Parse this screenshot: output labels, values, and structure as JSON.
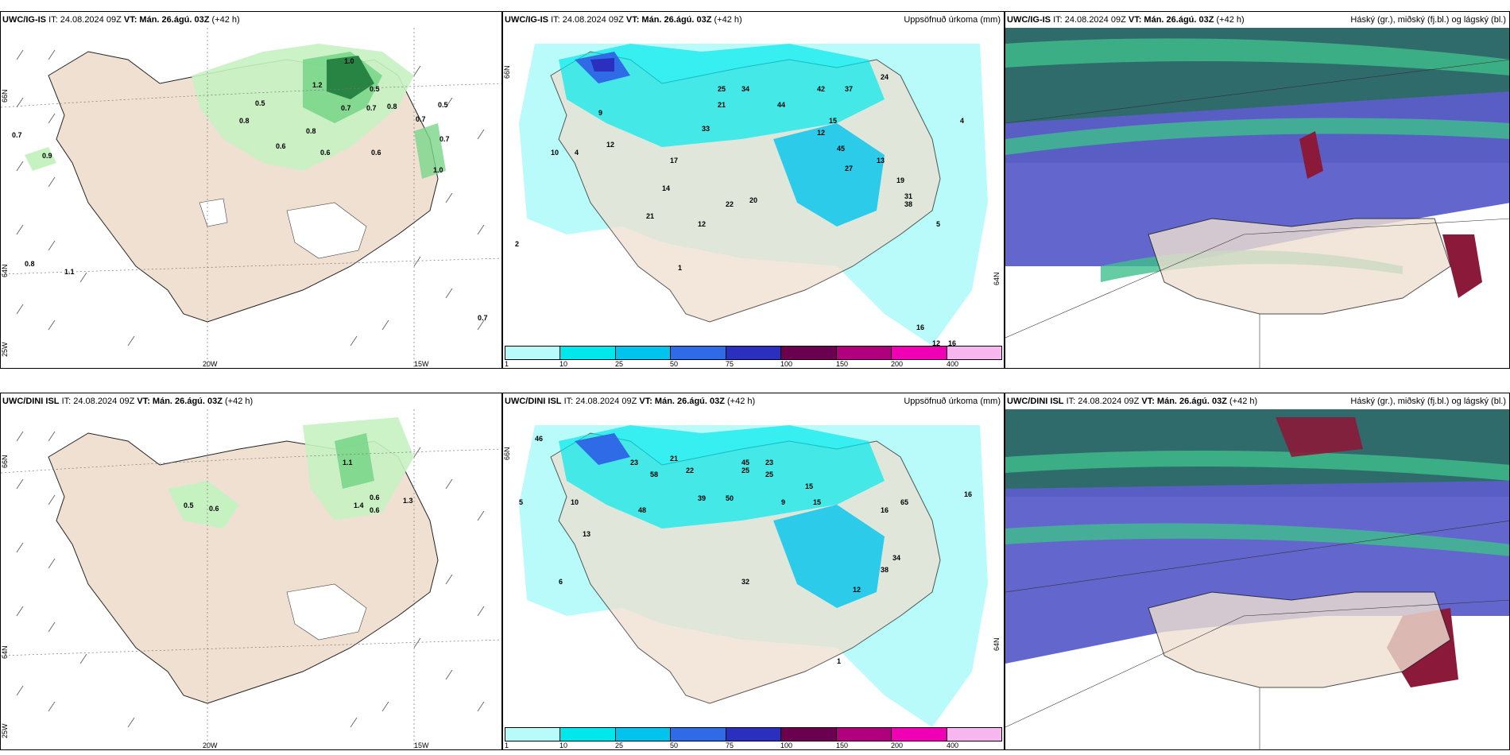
{
  "panels": [
    {
      "title_model": "UWC/IG-IS",
      "title_it": "IT: 24.08.2024 09Z",
      "title_vt_label": "VT:",
      "title_vt": "Mán. 26.ágú. 03Z",
      "title_lead": "(+42 h)",
      "right_text": ""
    },
    {
      "title_model": "UWC/IG-IS",
      "title_it": "IT: 24.08.2024 09Z",
      "title_vt_label": "VT:",
      "title_vt": "Mán. 26.ágú. 03Z",
      "title_lead": "(+42 h)",
      "right_text": "Uppsöfnuð úrkoma (mm)"
    },
    {
      "title_model": "UWC/IG-IS",
      "title_it": "IT: 24.08.2024 09Z",
      "title_vt_label": "VT:",
      "title_vt": "Mán. 26.ágú. 03Z",
      "title_lead": "(+42 h)",
      "right_text": "Háský (gr.), miðský (fj.bl.) og lágský (bl.)"
    },
    {
      "title_model": "UWC/DINI ISL",
      "title_it": "IT: 24.08.2024 09Z",
      "title_vt_label": "VT:",
      "title_vt": "Mán. 26.ágú. 03Z",
      "title_lead": "(+42 h)",
      "right_text": ""
    },
    {
      "title_model": "UWC/DINI ISL",
      "title_it": "IT: 24.08.2024 09Z",
      "title_vt_label": "VT:",
      "title_vt": "Mán. 26.ágú. 03Z",
      "title_lead": "(+42 h)",
      "right_text": "Uppsöfnuð úrkoma (mm)"
    },
    {
      "title_model": "UWC/DINI ISL",
      "title_it": "IT: 24.08.2024 09Z",
      "title_vt_label": "VT:",
      "title_vt": "Mán. 26.ágú. 03Z",
      "title_lead": "(+42 h)",
      "right_text": "Háský (gr.), miðský (fj.bl.) og lágský (bl.)"
    }
  ],
  "axis_labels": {
    "lat66": "66N",
    "lat64": "64N",
    "lon20": "20W",
    "lon15": "15W",
    "lon25": "25W"
  },
  "colorbar": {
    "ticks": [
      "1",
      "10",
      "25",
      "50",
      "75",
      "100",
      "150",
      "200",
      "400"
    ],
    "colors": [
      "#b9fbfb",
      "#00e8ec",
      "#00c4ee",
      "#2f6be6",
      "#2a2fbd",
      "#6b004e",
      "#b0007e",
      "#f000b4",
      "#f6b6ee"
    ]
  },
  "wind_values_top": [
    "0.7",
    "0.9",
    "0.8",
    "1.1",
    "0.5",
    "0.8",
    "0.6",
    "0.8",
    "0.6",
    "0.7",
    "0.6",
    "1.2",
    "1.0",
    "0.5",
    "0.7",
    "0.8",
    "0.7",
    "0.5",
    "0.7",
    "1.0",
    "0.7"
  ],
  "wind_values_bottom": [
    "0.5",
    "0.6",
    "1.1",
    "1.4",
    "0.6",
    "0.6",
    "1.3"
  ],
  "precip_values_top": [
    "10",
    "4",
    "12",
    "9",
    "21",
    "33",
    "25",
    "34",
    "44",
    "37",
    "24",
    "42",
    "15",
    "12",
    "38",
    "45",
    "27",
    "13",
    "19",
    "31",
    "5",
    "4",
    "14",
    "17",
    "22",
    "21",
    "12",
    "20",
    "2",
    "1",
    "16",
    "12",
    "16"
  ],
  "precip_values_bottom": [
    "23",
    "22",
    "25",
    "48",
    "39",
    "50",
    "45",
    "21",
    "15",
    "32",
    "16",
    "65",
    "23",
    "9",
    "15",
    "58",
    "25",
    "46",
    "5",
    "1",
    "16",
    "10",
    "13",
    "34",
    "38",
    "6",
    "12"
  ],
  "colors": {
    "land": "#efe0d1",
    "sea": "#ffffff",
    "green_light": "#c6f2c2",
    "green_mid": "#7ad68a",
    "green_dark": "#1e7a3a",
    "cloud_high": "#2f6b6b",
    "cloud_mid": "#5b5ec9",
    "cloud_low": "#3fbf8c",
    "cloud_red": "#8b1a3a"
  }
}
